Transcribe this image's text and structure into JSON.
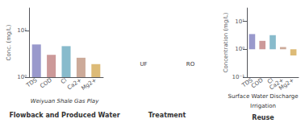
{
  "chart_data": [
    {
      "type": "bar",
      "categories": [
        "TDS",
        "COD",
        "Cl",
        "Ca2+",
        "Mg2+"
      ],
      "values": [
        5.0,
        3.0,
        4.6,
        2.6,
        1.9
      ],
      "colors": [
        "#9999CC",
        "#CC9999",
        "#88BBCC",
        "#CCAA99",
        "#DDBB77"
      ],
      "ylabel": "Conc. (mg/L)",
      "log": "y",
      "ylim": [
        1,
        30
      ],
      "yticks": [
        {
          "value": 1,
          "label": "10⁰"
        },
        {
          "value": 10,
          "label": "10¹"
        }
      ],
      "grid": false,
      "annotations": [
        "Weiyuan Shale Gas Play",
        "Flowback and Produced Water",
        "UF",
        "RO",
        "Treatment"
      ]
    },
    {
      "type": "bar",
      "categories": [
        "TDS",
        "COD",
        "Cl",
        "Ca2+",
        "Mg2+"
      ],
      "values": [
        3.5,
        2.0,
        3.2,
        1.2,
        0.6
      ],
      "colors": [
        "#9999CC",
        "#CC9999",
        "#88BBCC",
        "#CCAA99",
        "#DDBB77"
      ],
      "ylabel": "Concentration (mg/L)",
      "log": "y",
      "ylim": [
        0.1,
        30
      ],
      "yticks": [
        {
          "value": 0.1,
          "label": "10⁻¹"
        },
        {
          "value": 1,
          "label": "10⁰"
        },
        {
          "value": 10,
          "label": "10¹"
        }
      ],
      "grid": false,
      "annotations": [
        "Surface Water Discharge",
        "Irrigation",
        "Reuse"
      ]
    }
  ]
}
